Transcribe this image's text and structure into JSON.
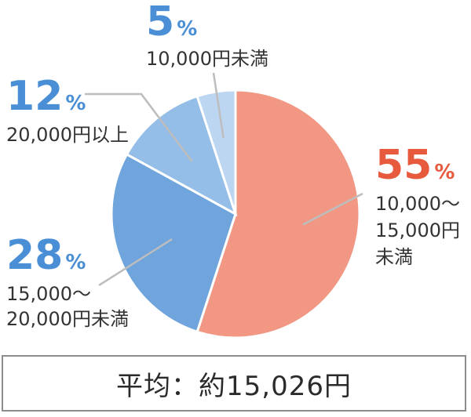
{
  "chart_data": {
    "type": "pie",
    "slices": [
      {
        "label_lines": [
          "10,000～",
          "15,000円",
          "未満"
        ],
        "value": 55,
        "pct_text": "55",
        "color": "#f19783",
        "label_color": "#e85a3e"
      },
      {
        "label_lines": [
          "15,000～",
          "20,000円未満"
        ],
        "value": 28,
        "pct_text": "28",
        "color": "#6fa5dc",
        "label_color": "#4a8fd6"
      },
      {
        "label_lines": [
          "20,000円以上"
        ],
        "value": 12,
        "pct_text": "12",
        "color": "#94bde7",
        "label_color": "#4a8fd6"
      },
      {
        "label_lines": [
          "10,000円未満"
        ],
        "value": 5,
        "pct_text": "5",
        "color": "#bcd6f2",
        "label_color": "#4a8fd6"
      }
    ],
    "percent_symbol": "%",
    "footer": "平均：約15,026円"
  }
}
